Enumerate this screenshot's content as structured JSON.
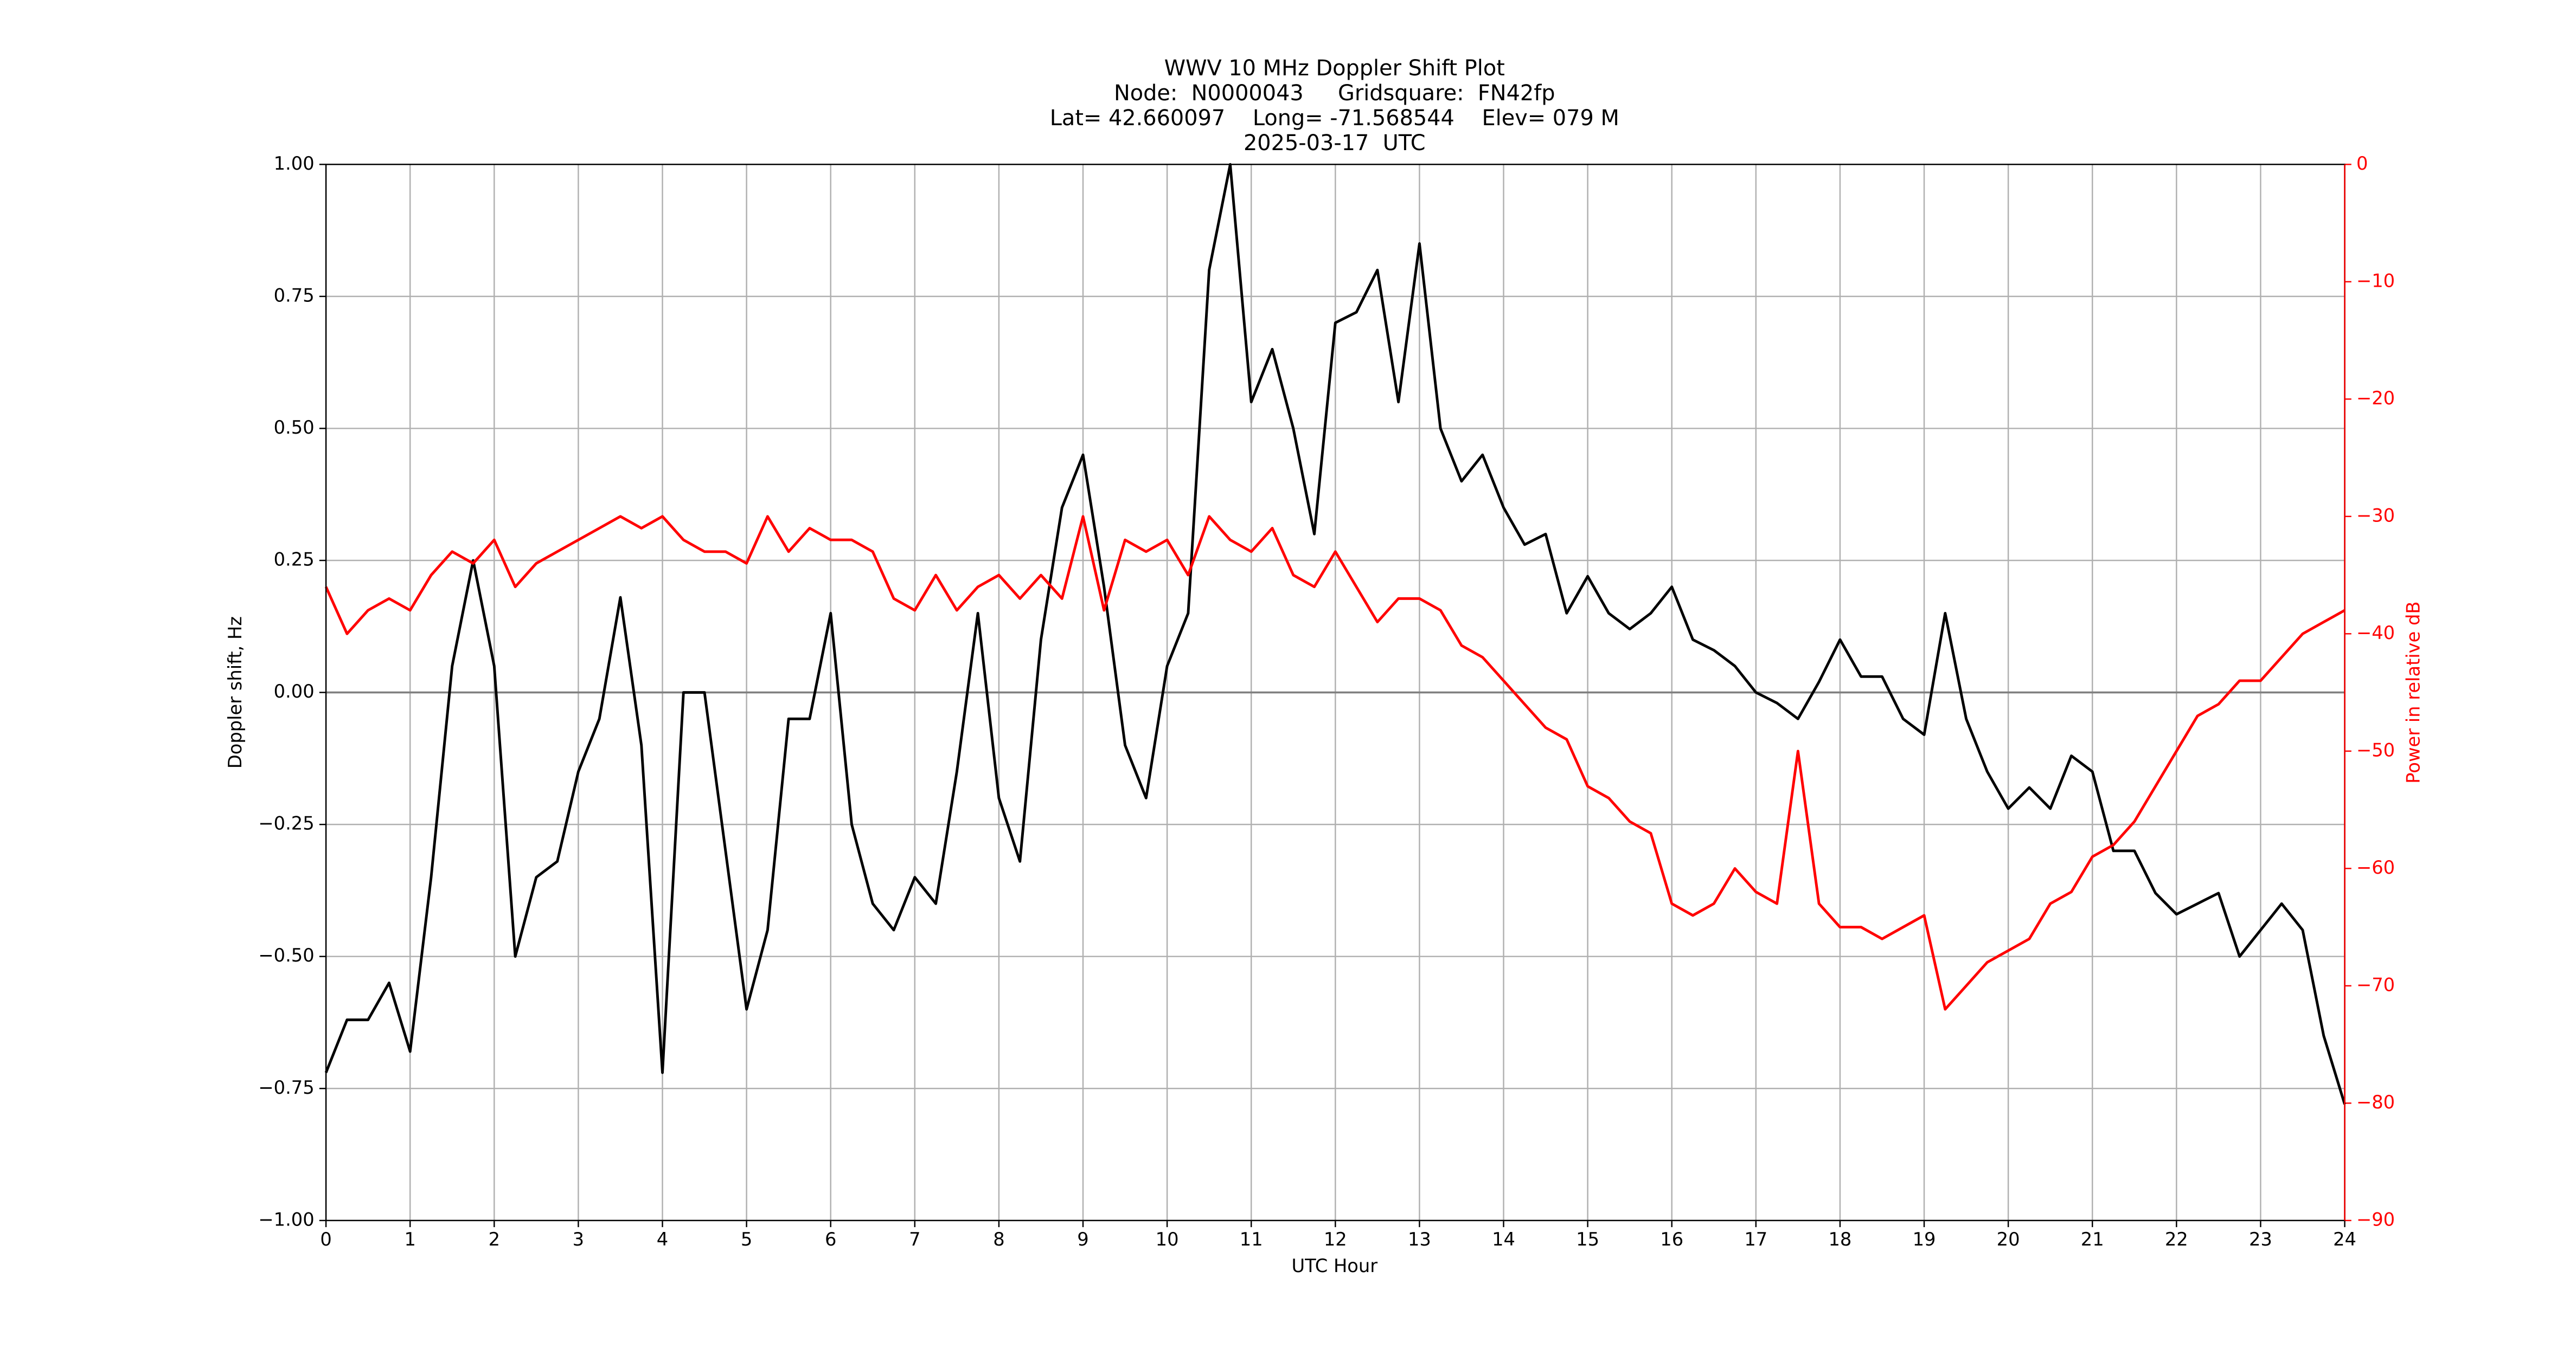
{
  "chart_data": {
    "type": "line",
    "title": [
      "WWV 10 MHz Doppler Shift Plot",
      "Node:  N0000043     Gridsquare:  FN42fp",
      "Lat= 42.660097    Long= -71.568544    Elev= 079 M",
      "2025-03-17  UTC"
    ],
    "xlabel": "UTC Hour",
    "ylabel": "Doppler shift, Hz",
    "y2label": "Power in relative dB",
    "x": [
      0,
      0.25,
      0.5,
      0.75,
      1,
      1.25,
      1.5,
      1.75,
      2,
      2.25,
      2.5,
      2.75,
      3,
      3.25,
      3.5,
      3.75,
      4,
      4.25,
      4.5,
      4.75,
      5,
      5.25,
      5.5,
      5.75,
      6,
      6.25,
      6.5,
      6.75,
      7,
      7.25,
      7.5,
      7.75,
      8,
      8.25,
      8.5,
      8.75,
      9,
      9.25,
      9.5,
      9.75,
      10,
      10.25,
      10.5,
      10.75,
      11,
      11.25,
      11.5,
      11.75,
      12,
      12.25,
      12.5,
      12.75,
      13,
      13.25,
      13.5,
      13.75,
      14,
      14.25,
      14.5,
      14.75,
      15,
      15.25,
      15.5,
      15.75,
      16,
      16.25,
      16.5,
      16.75,
      17,
      17.25,
      17.5,
      17.75,
      18,
      18.25,
      18.5,
      18.75,
      19,
      19.25,
      19.5,
      19.75,
      20,
      20.25,
      20.5,
      20.75,
      21,
      21.25,
      21.5,
      21.75,
      22,
      22.25,
      22.5,
      22.75,
      23,
      23.25,
      23.5,
      23.75,
      24
    ],
    "series": [
      {
        "color": "#000000",
        "axis": "y",
        "values": [
          -0.72,
          -0.62,
          -0.62,
          -0.55,
          -0.68,
          -0.35,
          0.05,
          0.25,
          0.05,
          -0.5,
          -0.35,
          -0.32,
          -0.15,
          -0.05,
          0.18,
          -0.1,
          -0.72,
          0.0,
          0.0,
          -0.3,
          -0.6,
          -0.45,
          -0.05,
          -0.05,
          0.15,
          -0.25,
          -0.4,
          -0.45,
          -0.35,
          -0.4,
          -0.15,
          0.15,
          -0.2,
          -0.32,
          0.1,
          0.35,
          0.45,
          0.2,
          -0.1,
          -0.2,
          0.05,
          0.15,
          0.8,
          1.0,
          0.55,
          0.65,
          0.5,
          0.3,
          0.7,
          0.72,
          0.8,
          0.55,
          0.85,
          0.5,
          0.4,
          0.45,
          0.35,
          0.28,
          0.3,
          0.15,
          0.22,
          0.15,
          0.12,
          0.15,
          0.2,
          0.1,
          0.08,
          0.05,
          0.0,
          -0.02,
          -0.05,
          0.02,
          0.1,
          0.03,
          0.03,
          -0.05,
          -0.08,
          0.15,
          -0.05,
          -0.15,
          -0.22,
          -0.18,
          -0.22,
          -0.12,
          -0.15,
          -0.3,
          -0.3,
          -0.38,
          -0.42,
          -0.4,
          -0.38,
          -0.5,
          -0.45,
          -0.4,
          -0.45,
          -0.65,
          -0.78
        ]
      },
      {
        "color": "#ff0000",
        "axis": "y2",
        "values": [
          -36,
          -40,
          -38,
          -37,
          -38,
          -35,
          -33,
          -34,
          -32,
          -36,
          -34,
          -33,
          -32,
          -31,
          -30,
          -31,
          -30,
          -32,
          -33,
          -33,
          -34,
          -30,
          -33,
          -31,
          -32,
          -32,
          -33,
          -37,
          -38,
          -35,
          -38,
          -36,
          -35,
          -37,
          -35,
          -37,
          -30,
          -38,
          -32,
          -33,
          -32,
          -35,
          -30,
          -32,
          -33,
          -31,
          -35,
          -36,
          -33,
          -36,
          -39,
          -37,
          -37,
          -38,
          -41,
          -42,
          -44,
          -46,
          -48,
          -49,
          -53,
          -54,
          -56,
          -57,
          -63,
          -64,
          -63,
          -60,
          -62,
          -63,
          -50,
          -63,
          -65,
          -65,
          -66,
          -65,
          -64,
          -72,
          -70,
          -68,
          -67,
          -66,
          -63,
          -62,
          -59,
          -58,
          -56,
          -53,
          -50,
          -47,
          -46,
          -44,
          -44,
          -42,
          -40,
          -39,
          -38
        ]
      }
    ],
    "xlim": [
      0,
      24
    ],
    "xticks": [
      0,
      1,
      2,
      3,
      4,
      5,
      6,
      7,
      8,
      9,
      10,
      11,
      12,
      13,
      14,
      15,
      16,
      17,
      18,
      19,
      20,
      21,
      22,
      23,
      24
    ],
    "ylim": [
      -1,
      1
    ],
    "yticks": [
      {
        "value": -1,
        "label": "−1.00"
      },
      {
        "value": -0.75,
        "label": "−0.75"
      },
      {
        "value": -0.5,
        "label": "−0.50"
      },
      {
        "value": -0.25,
        "label": "−0.25"
      },
      {
        "value": 0,
        "label": "0.00"
      },
      {
        "value": 0.25,
        "label": "0.25"
      },
      {
        "value": 0.5,
        "label": "0.50"
      },
      {
        "value": 0.75,
        "label": "0.75"
      },
      {
        "value": 1,
        "label": "1.00"
      }
    ],
    "y2lim": [
      -90,
      0
    ],
    "y2ticks": [
      {
        "value": -90,
        "label": "−90"
      },
      {
        "value": -80,
        "label": "−80"
      },
      {
        "value": -70,
        "label": "−70"
      },
      {
        "value": -60,
        "label": "−60"
      },
      {
        "value": -50,
        "label": "−50"
      },
      {
        "value": -40,
        "label": "−40"
      },
      {
        "value": -30,
        "label": "−30"
      },
      {
        "value": -20,
        "label": "−20"
      },
      {
        "value": -10,
        "label": "−10"
      },
      0
    ],
    "y2color": "#ff0000",
    "grid": true
  }
}
